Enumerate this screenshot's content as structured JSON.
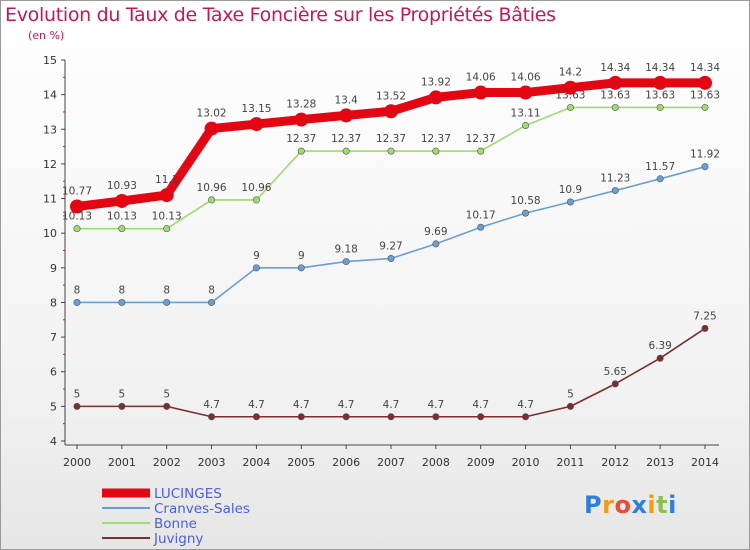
{
  "chart_data": {
    "type": "line",
    "title": "Evolution du Taux de Taxe Foncière sur les Propriétés Bâties",
    "ylabel": "(en %)",
    "xlabel": "",
    "ylim": [
      4,
      15
    ],
    "yticks": [
      "4",
      "5",
      "6",
      "7",
      "8",
      "9",
      "10",
      "11",
      "12",
      "13",
      "14",
      "15"
    ],
    "categories": [
      "2000",
      "2001",
      "2002",
      "2003",
      "2004",
      "2005",
      "2006",
      "2007",
      "2008",
      "2009",
      "2010",
      "2011",
      "2012",
      "2013",
      "2014"
    ],
    "series": [
      {
        "name": "LUCINGES",
        "color": "#e30613",
        "values": [
          10.77,
          10.93,
          11.1,
          13.02,
          13.15,
          13.28,
          13.4,
          13.52,
          13.92,
          14.06,
          14.06,
          14.2,
          14.34,
          14.34,
          14.34
        ],
        "labels": [
          "10.77",
          "10.93",
          "11.1",
          "13.02",
          "13.15",
          "13.28",
          "13.4",
          "13.52",
          "13.92",
          "14.06",
          "14.06",
          "14.2",
          "14.34",
          "14.34",
          "14.34"
        ]
      },
      {
        "name": "Cranves-Sales",
        "color": "#6a9fd4",
        "values": [
          8,
          8,
          8,
          8,
          9,
          9,
          9.18,
          9.27,
          9.69,
          10.17,
          10.58,
          10.9,
          11.23,
          11.57,
          11.92
        ],
        "labels": [
          "8",
          "8",
          "8",
          "8",
          "9",
          "9",
          "9.18",
          "9.27",
          "9.69",
          "10.17",
          "10.58",
          "10.9",
          "11.23",
          "11.57",
          "11.92"
        ]
      },
      {
        "name": "Bonne",
        "color": "#9fdb6e",
        "values": [
          10.13,
          10.13,
          10.13,
          10.96,
          10.96,
          12.37,
          12.37,
          12.37,
          12.37,
          12.37,
          13.11,
          13.63,
          13.63,
          13.63,
          13.63
        ],
        "labels": [
          "10.13",
          "10.13",
          "10.13",
          "10.96",
          "10.96",
          "12.37",
          "12.37",
          "12.37",
          "12.37",
          "12.37",
          "13.11",
          "13.63",
          "13.63",
          "13.63",
          "13.63"
        ]
      },
      {
        "name": "Juvigny",
        "color": "#7a2e2e",
        "values": [
          5,
          5,
          5,
          4.7,
          4.7,
          4.7,
          4.7,
          4.7,
          4.7,
          4.7,
          4.7,
          5,
          5.65,
          6.39,
          7.25
        ],
        "labels": [
          "5",
          "5",
          "5",
          "4.7",
          "4.7",
          "4.7",
          "4.7",
          "4.7",
          "4.7",
          "4.7",
          "4.7",
          "5",
          "5.65",
          "6.39",
          "7.25"
        ]
      }
    ],
    "legend_position": "bottom-left"
  },
  "logo": {
    "letters": [
      "P",
      "r",
      "o",
      "x",
      "i",
      "t",
      "i"
    ],
    "colors": [
      "#2f7fd8",
      "#f39c12",
      "#e74c3c",
      "#2f7fd8",
      "#f39c12",
      "#8bc34a",
      "#2f7fd8"
    ]
  }
}
